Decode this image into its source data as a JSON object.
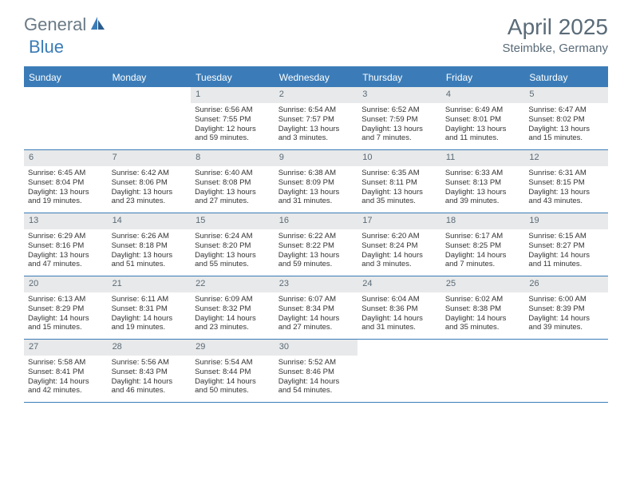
{
  "logo": {
    "part1": "General",
    "part2": "Blue"
  },
  "title": "April 2025",
  "location": "Steimbke, Germany",
  "colors": {
    "header_bg": "#3b7cb8",
    "header_text": "#ffffff",
    "daynum_bg": "#e8e9ea",
    "daynum_text": "#5a6a76",
    "body_text": "#333333",
    "title_text": "#5a6b78",
    "logo_gray": "#6a7a86",
    "logo_blue": "#3b7cb8"
  },
  "dayNames": [
    "Sunday",
    "Monday",
    "Tuesday",
    "Wednesday",
    "Thursday",
    "Friday",
    "Saturday"
  ],
  "weeks": [
    [
      {
        "day": "",
        "empty": true
      },
      {
        "day": "",
        "empty": true
      },
      {
        "day": "1",
        "sunrise": "Sunrise: 6:56 AM",
        "sunset": "Sunset: 7:55 PM",
        "daylight": "Daylight: 12 hours and 59 minutes."
      },
      {
        "day": "2",
        "sunrise": "Sunrise: 6:54 AM",
        "sunset": "Sunset: 7:57 PM",
        "daylight": "Daylight: 13 hours and 3 minutes."
      },
      {
        "day": "3",
        "sunrise": "Sunrise: 6:52 AM",
        "sunset": "Sunset: 7:59 PM",
        "daylight": "Daylight: 13 hours and 7 minutes."
      },
      {
        "day": "4",
        "sunrise": "Sunrise: 6:49 AM",
        "sunset": "Sunset: 8:01 PM",
        "daylight": "Daylight: 13 hours and 11 minutes."
      },
      {
        "day": "5",
        "sunrise": "Sunrise: 6:47 AM",
        "sunset": "Sunset: 8:02 PM",
        "daylight": "Daylight: 13 hours and 15 minutes."
      }
    ],
    [
      {
        "day": "6",
        "sunrise": "Sunrise: 6:45 AM",
        "sunset": "Sunset: 8:04 PM",
        "daylight": "Daylight: 13 hours and 19 minutes."
      },
      {
        "day": "7",
        "sunrise": "Sunrise: 6:42 AM",
        "sunset": "Sunset: 8:06 PM",
        "daylight": "Daylight: 13 hours and 23 minutes."
      },
      {
        "day": "8",
        "sunrise": "Sunrise: 6:40 AM",
        "sunset": "Sunset: 8:08 PM",
        "daylight": "Daylight: 13 hours and 27 minutes."
      },
      {
        "day": "9",
        "sunrise": "Sunrise: 6:38 AM",
        "sunset": "Sunset: 8:09 PM",
        "daylight": "Daylight: 13 hours and 31 minutes."
      },
      {
        "day": "10",
        "sunrise": "Sunrise: 6:35 AM",
        "sunset": "Sunset: 8:11 PM",
        "daylight": "Daylight: 13 hours and 35 minutes."
      },
      {
        "day": "11",
        "sunrise": "Sunrise: 6:33 AM",
        "sunset": "Sunset: 8:13 PM",
        "daylight": "Daylight: 13 hours and 39 minutes."
      },
      {
        "day": "12",
        "sunrise": "Sunrise: 6:31 AM",
        "sunset": "Sunset: 8:15 PM",
        "daylight": "Daylight: 13 hours and 43 minutes."
      }
    ],
    [
      {
        "day": "13",
        "sunrise": "Sunrise: 6:29 AM",
        "sunset": "Sunset: 8:16 PM",
        "daylight": "Daylight: 13 hours and 47 minutes."
      },
      {
        "day": "14",
        "sunrise": "Sunrise: 6:26 AM",
        "sunset": "Sunset: 8:18 PM",
        "daylight": "Daylight: 13 hours and 51 minutes."
      },
      {
        "day": "15",
        "sunrise": "Sunrise: 6:24 AM",
        "sunset": "Sunset: 8:20 PM",
        "daylight": "Daylight: 13 hours and 55 minutes."
      },
      {
        "day": "16",
        "sunrise": "Sunrise: 6:22 AM",
        "sunset": "Sunset: 8:22 PM",
        "daylight": "Daylight: 13 hours and 59 minutes."
      },
      {
        "day": "17",
        "sunrise": "Sunrise: 6:20 AM",
        "sunset": "Sunset: 8:24 PM",
        "daylight": "Daylight: 14 hours and 3 minutes."
      },
      {
        "day": "18",
        "sunrise": "Sunrise: 6:17 AM",
        "sunset": "Sunset: 8:25 PM",
        "daylight": "Daylight: 14 hours and 7 minutes."
      },
      {
        "day": "19",
        "sunrise": "Sunrise: 6:15 AM",
        "sunset": "Sunset: 8:27 PM",
        "daylight": "Daylight: 14 hours and 11 minutes."
      }
    ],
    [
      {
        "day": "20",
        "sunrise": "Sunrise: 6:13 AM",
        "sunset": "Sunset: 8:29 PM",
        "daylight": "Daylight: 14 hours and 15 minutes."
      },
      {
        "day": "21",
        "sunrise": "Sunrise: 6:11 AM",
        "sunset": "Sunset: 8:31 PM",
        "daylight": "Daylight: 14 hours and 19 minutes."
      },
      {
        "day": "22",
        "sunrise": "Sunrise: 6:09 AM",
        "sunset": "Sunset: 8:32 PM",
        "daylight": "Daylight: 14 hours and 23 minutes."
      },
      {
        "day": "23",
        "sunrise": "Sunrise: 6:07 AM",
        "sunset": "Sunset: 8:34 PM",
        "daylight": "Daylight: 14 hours and 27 minutes."
      },
      {
        "day": "24",
        "sunrise": "Sunrise: 6:04 AM",
        "sunset": "Sunset: 8:36 PM",
        "daylight": "Daylight: 14 hours and 31 minutes."
      },
      {
        "day": "25",
        "sunrise": "Sunrise: 6:02 AM",
        "sunset": "Sunset: 8:38 PM",
        "daylight": "Daylight: 14 hours and 35 minutes."
      },
      {
        "day": "26",
        "sunrise": "Sunrise: 6:00 AM",
        "sunset": "Sunset: 8:39 PM",
        "daylight": "Daylight: 14 hours and 39 minutes."
      }
    ],
    [
      {
        "day": "27",
        "sunrise": "Sunrise: 5:58 AM",
        "sunset": "Sunset: 8:41 PM",
        "daylight": "Daylight: 14 hours and 42 minutes."
      },
      {
        "day": "28",
        "sunrise": "Sunrise: 5:56 AM",
        "sunset": "Sunset: 8:43 PM",
        "daylight": "Daylight: 14 hours and 46 minutes."
      },
      {
        "day": "29",
        "sunrise": "Sunrise: 5:54 AM",
        "sunset": "Sunset: 8:44 PM",
        "daylight": "Daylight: 14 hours and 50 minutes."
      },
      {
        "day": "30",
        "sunrise": "Sunrise: 5:52 AM",
        "sunset": "Sunset: 8:46 PM",
        "daylight": "Daylight: 14 hours and 54 minutes."
      },
      {
        "day": "",
        "empty": true
      },
      {
        "day": "",
        "empty": true
      },
      {
        "day": "",
        "empty": true
      }
    ]
  ]
}
